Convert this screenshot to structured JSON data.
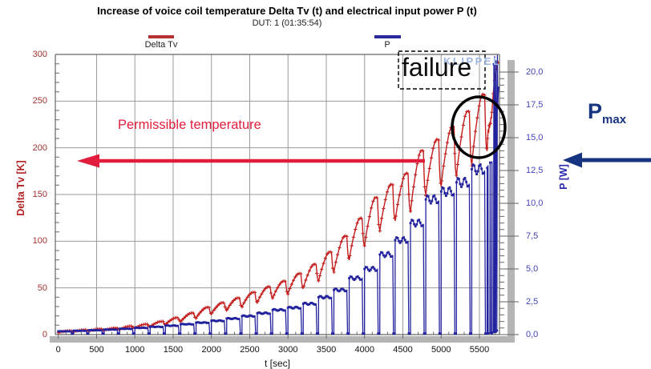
{
  "chart_data": {
    "type": "line",
    "title": "Increase of voice coil temperature Delta Tv (t) and electrical input power P (t)",
    "subtitle": "DUT: 1  (01:35:54)",
    "xlabel": "t [sec]",
    "ylabel_left": "Delta Tv [K]",
    "ylabel_right": "P [W]",
    "xlim": [
      0,
      5760
    ],
    "ylim_left": [
      0,
      300
    ],
    "ylim_right": [
      0,
      20
    ],
    "grid": true,
    "x_ticks": [
      0,
      500,
      1000,
      1500,
      2000,
      2500,
      3000,
      3500,
      4000,
      4500,
      5000,
      5500
    ],
    "y_left_ticks": [
      0,
      50,
      100,
      150,
      200,
      250,
      300
    ],
    "y_right_ticks": [
      {
        "v": 0,
        "label": "0,0"
      },
      {
        "v": 2.5,
        "label": "2,5"
      },
      {
        "v": 5,
        "label": "5,0"
      },
      {
        "v": 7.5,
        "label": "7,5"
      },
      {
        "v": 10,
        "label": "10,0"
      },
      {
        "v": 12.5,
        "label": "12,5"
      },
      {
        "v": 15,
        "label": "15,0"
      },
      {
        "v": 17.5,
        "label": "17,5"
      },
      {
        "v": 20,
        "label": "20,0"
      }
    ],
    "series": [
      {
        "name": "Delta Tv",
        "color": "#c41e1e",
        "axis": "left",
        "marker": "plus"
      },
      {
        "name": "P",
        "color": "#22229e",
        "axis": "right",
        "marker": "square"
      }
    ],
    "cycle_on_s": 172,
    "cycle_len_s": 200,
    "dip_ratio": 0.76,
    "cycles": [
      [
        0,
        0.25,
        4
      ],
      [
        200,
        0.29,
        5
      ],
      [
        400,
        0.33,
        6
      ],
      [
        600,
        0.38,
        7
      ],
      [
        800,
        0.44,
        9
      ],
      [
        1000,
        0.51,
        11
      ],
      [
        1200,
        0.59,
        14
      ],
      [
        1400,
        0.68,
        18
      ],
      [
        1600,
        0.79,
        23
      ],
      [
        1800,
        0.91,
        29
      ],
      [
        2000,
        1.05,
        34
      ],
      [
        2200,
        1.22,
        39
      ],
      [
        2400,
        1.41,
        45
      ],
      [
        2600,
        1.63,
        51
      ],
      [
        2800,
        1.88,
        57
      ],
      [
        3000,
        2.05,
        65
      ],
      [
        3200,
        2.35,
        75
      ],
      [
        3400,
        2.85,
        88
      ],
      [
        3600,
        3.4,
        105
      ],
      [
        3800,
        4.3,
        124
      ],
      [
        4000,
        5.0,
        146
      ],
      [
        4200,
        6.1,
        160
      ],
      [
        4400,
        7.2,
        172
      ],
      [
        4600,
        8.5,
        196
      ],
      [
        4800,
        10.3,
        208
      ],
      [
        5000,
        10.9,
        222
      ],
      [
        5200,
        11.6,
        238
      ],
      [
        5400,
        12.6,
        256
      ]
    ],
    "failure_tail": {
      "Tv": [
        [
          5602,
          198
        ],
        [
          5608,
          210
        ],
        [
          5614,
          220
        ],
        [
          5620,
          216
        ],
        [
          5626,
          224
        ],
        [
          5632,
          221
        ],
        [
          5638,
          228
        ],
        [
          5644,
          226
        ],
        [
          5650,
          233
        ],
        [
          5656,
          231
        ],
        [
          5662,
          238
        ],
        [
          5668,
          244
        ],
        [
          5674,
          251
        ],
        [
          5680,
          258
        ],
        [
          5686,
          263
        ],
        [
          5692,
          268
        ],
        [
          5698,
          272
        ],
        [
          5704,
          276
        ],
        [
          5712,
          280
        ],
        [
          5720,
          284
        ],
        [
          5728,
          287
        ],
        [
          5736,
          289
        ],
        [
          5746,
          291
        ]
      ],
      "P": [
        [
          5602,
          12.7
        ],
        [
          5606,
          12.7
        ],
        [
          5608,
          0.1
        ],
        [
          5612,
          12.9
        ],
        [
          5614,
          0.1
        ],
        [
          5636,
          0.1
        ],
        [
          5640,
          13.1
        ],
        [
          5644,
          0.1
        ],
        [
          5660,
          0.1
        ],
        [
          5664,
          13.2
        ],
        [
          5666,
          0.15
        ],
        [
          5684,
          0.15
        ],
        [
          5688,
          20.6
        ],
        [
          5690,
          0.2
        ],
        [
          5694,
          0.2
        ],
        [
          5698,
          21.2
        ],
        [
          5702,
          17.4
        ],
        [
          5706,
          0.2
        ],
        [
          5712,
          0.2
        ],
        [
          5716,
          20.9
        ],
        [
          5720,
          17.2
        ],
        [
          5724,
          17.8
        ],
        [
          5728,
          0.3
        ],
        [
          5734,
          21.3
        ],
        [
          5740,
          17.5
        ],
        [
          5746,
          18.4
        ],
        [
          5752,
          18.8
        ]
      ]
    },
    "colors": {
      "grid": "#9a9a9a",
      "axis": "#666666",
      "left_tick_text": "#a33131",
      "right_tick_text": "#4444bb",
      "annotation_red": "#e11c3c",
      "annotation_blue": "#16337f",
      "watermark_blue": "#9fb6df",
      "shadow_gray": "#b5b5b5"
    }
  },
  "annotations": {
    "failure_label": "failure",
    "watermark": "KLIPPEL",
    "permissible_label": "Permissible temperature",
    "pmax_base": "P",
    "pmax_sub": "max"
  }
}
